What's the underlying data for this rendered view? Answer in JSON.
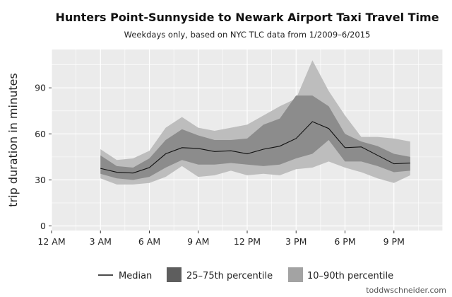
{
  "chart_data": {
    "type": "line",
    "title": "Hunters Point-Sunnyside to Newark Airport Taxi Travel Time",
    "subtitle": "Weekdays only, based on NYC TLC data from 1/2009–6/2015",
    "xlabel": "",
    "ylabel": "trip duration in minutes",
    "xlim": [
      0,
      24
    ],
    "ylim": [
      -3,
      115
    ],
    "x_ticks": [
      0,
      3,
      6,
      9,
      12,
      15,
      18,
      21
    ],
    "x_tick_labels": [
      "12 AM",
      "3 AM",
      "6 AM",
      "9 AM",
      "12 PM",
      "3 PM",
      "6 PM",
      "9 PM"
    ],
    "y_ticks": [
      0,
      30,
      60,
      90
    ],
    "y_tick_labels": [
      "0",
      "30",
      "60",
      "90"
    ],
    "grid": true,
    "legend_position": "bottom",
    "x": [
      3,
      4,
      5,
      6,
      7,
      8,
      9,
      10,
      11,
      12,
      13,
      14,
      15,
      16,
      17,
      18,
      19,
      20,
      21,
      22
    ],
    "series": [
      {
        "name": "Median",
        "kind": "line",
        "values": [
          37.5,
          35,
          34.5,
          38,
          47,
          51,
          50.5,
          48.5,
          49,
          47,
          50,
          52,
          57,
          68,
          63.5,
          51,
          51.5,
          46,
          40.5,
          41
        ]
      },
      {
        "name": "25–75th percentile",
        "kind": "band",
        "lower": [
          34,
          31,
          30,
          32,
          38,
          43,
          40,
          40,
          41,
          40,
          39,
          40,
          44,
          47,
          56,
          42,
          42,
          39,
          35,
          36
        ],
        "upper": [
          46,
          39,
          38,
          44,
          56,
          63,
          59,
          56,
          56,
          57,
          66,
          70,
          85,
          85,
          78,
          60,
          55,
          52,
          47,
          45
        ]
      },
      {
        "name": "10–90th percentile",
        "kind": "band",
        "lower": [
          31,
          27,
          27,
          28,
          32,
          39,
          32,
          33,
          36,
          33,
          34,
          33,
          37,
          38,
          42,
          38,
          35,
          31,
          28,
          33
        ],
        "upper": [
          50,
          43,
          44,
          49,
          64,
          71,
          64,
          62,
          64,
          66,
          72,
          78,
          83,
          108,
          88,
          72,
          58,
          58,
          57,
          55
        ]
      }
    ],
    "colors": {
      "panel": "#ebebeb",
      "grid": "#ffffff",
      "band_iqr": "#8c8c8c",
      "band_outer": "#bdbdbd",
      "median": "#111111",
      "legend_iqr": "#5e5e5e",
      "legend_outer": "#a3a3a3"
    }
  },
  "credit": "toddwschneider.com"
}
